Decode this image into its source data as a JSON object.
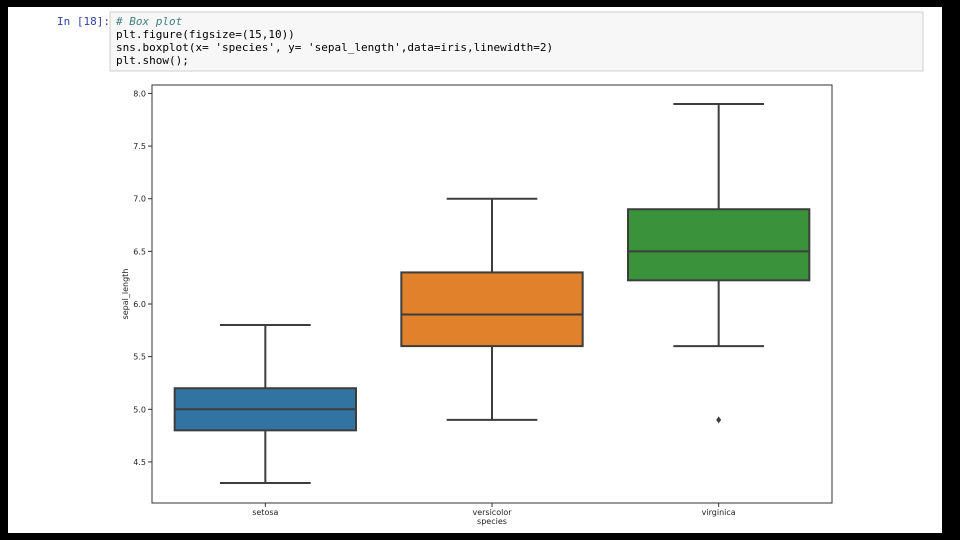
{
  "cell": {
    "prompt": "In [18]:",
    "code": [
      "# Box plot",
      "plt.figure(figsize=(15,10))",
      "sns.boxplot(x= 'species', y= 'sepal_length',data=iris,linewidth=2)",
      "plt.show();"
    ]
  },
  "chart_data": {
    "type": "box",
    "categories": [
      "setosa",
      "versicolor",
      "virginica"
    ],
    "colors": [
      "#3274a1",
      "#e1812c",
      "#3a923a"
    ],
    "stats": [
      {
        "low": 4.3,
        "q1": 4.8,
        "median": 5.0,
        "q3": 5.2,
        "high": 5.8,
        "outliers": []
      },
      {
        "low": 4.9,
        "q1": 5.6,
        "median": 5.9,
        "q3": 6.3,
        "high": 7.0,
        "outliers": []
      },
      {
        "low": 5.6,
        "q1": 6.225,
        "median": 6.5,
        "q3": 6.9,
        "high": 7.9,
        "outliers": [
          4.9
        ]
      }
    ],
    "xlabel": "species",
    "ylabel": "sepal_length",
    "ylim": [
      4.11,
      8.08
    ],
    "yticks": [
      4.5,
      {
        "value": 5,
        "label": "5.0"
      },
      5.5,
      {
        "value": 6,
        "label": "6.0"
      },
      6.5,
      {
        "value": 7,
        "label": "7.0"
      },
      7.5,
      {
        "value": 8,
        "label": "8.0"
      }
    ]
  }
}
